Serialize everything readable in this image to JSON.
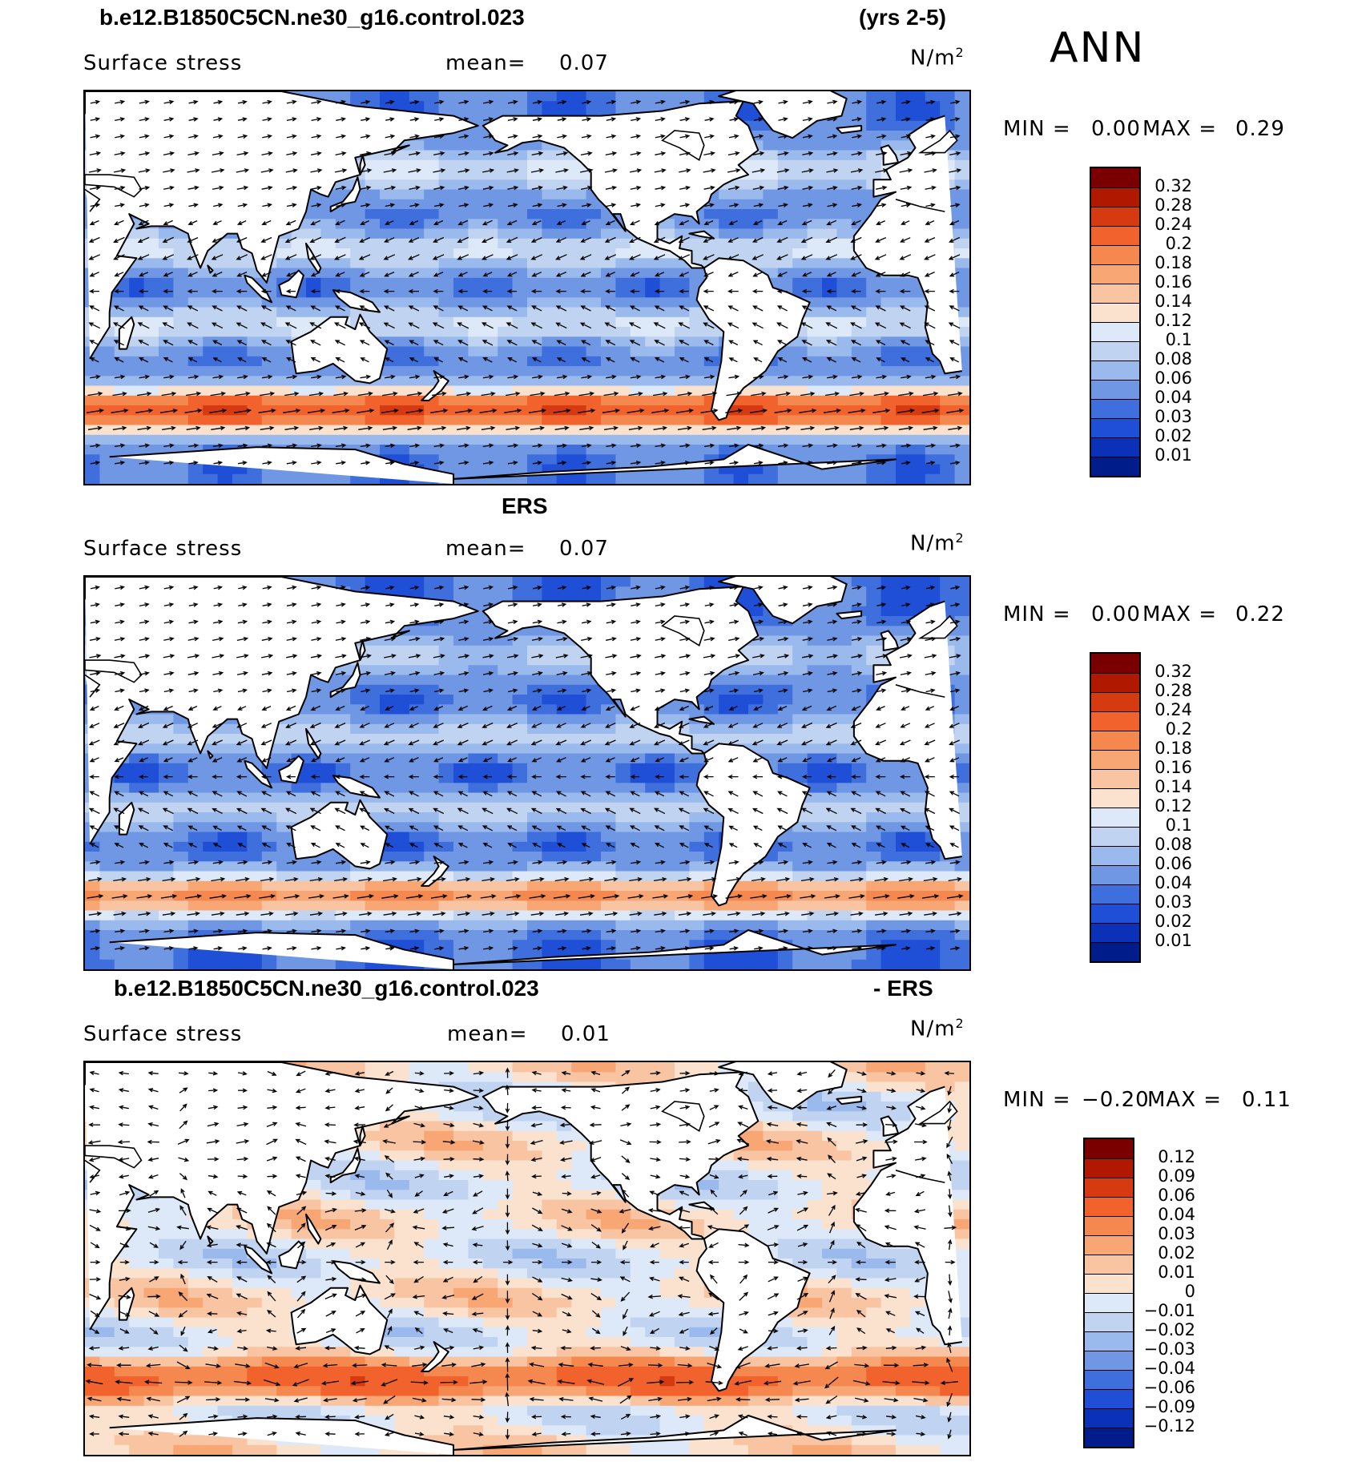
{
  "header": {
    "case_title": "b.e12.B1850C5CN.ne30_g16.control.023",
    "years": "(yrs 2-5)",
    "season": "ANN"
  },
  "panels": [
    {
      "label": "Surface stress",
      "mean_label": "mean=",
      "mean_value": "0.07",
      "units": "N/m",
      "units_sup": "2",
      "min_label": "MIN =",
      "min_value": "0.00",
      "max_label": "MAX =",
      "max_value": "0.29",
      "colorbar_labels": [
        "0.32",
        "0.28",
        "0.24",
        "0.2",
        "0.18",
        "0.16",
        "0.14",
        "0.12",
        "0.1",
        "0.08",
        "0.06",
        "0.04",
        "0.03",
        "0.02",
        "0.01"
      ],
      "colorbar_colors": [
        "#7a0000",
        "#b01800",
        "#d63a10",
        "#f2622d",
        "#f5884e",
        "#f7a674",
        "#f9c4a2",
        "#fbe2cf",
        "#dde9f8",
        "#c0d4f2",
        "#9ab9ec",
        "#6f97e4",
        "#3f6fdc",
        "#1f4fd6",
        "#0a31b8",
        "#001c8a"
      ],
      "field": "model"
    },
    {
      "title": "ERS",
      "label": "Surface stress",
      "mean_label": "mean=",
      "mean_value": "0.07",
      "units": "N/m",
      "units_sup": "2",
      "min_label": "MIN =",
      "min_value": "0.00",
      "max_label": "MAX =",
      "max_value": "0.22",
      "colorbar_labels": [
        "0.32",
        "0.28",
        "0.24",
        "0.2",
        "0.18",
        "0.16",
        "0.14",
        "0.12",
        "0.1",
        "0.08",
        "0.06",
        "0.04",
        "0.03",
        "0.02",
        "0.01"
      ],
      "colorbar_colors": [
        "#7a0000",
        "#b01800",
        "#d63a10",
        "#f2622d",
        "#f5884e",
        "#f7a674",
        "#f9c4a2",
        "#fbe2cf",
        "#dde9f8",
        "#c0d4f2",
        "#9ab9ec",
        "#6f97e4",
        "#3f6fdc",
        "#1f4fd6",
        "#0a31b8",
        "#001c8a"
      ],
      "field": "obs"
    },
    {
      "title_left": "b.e12.B1850C5CN.ne30_g16.control.023",
      "title_right": "- ERS",
      "label": "Surface stress",
      "mean_label": "mean=",
      "mean_value": "0.01",
      "units": "N/m",
      "units_sup": "2",
      "min_label": "MIN =",
      "min_value": "−0.20",
      "max_label": "MAX =",
      "max_value": "0.11",
      "colorbar_labels": [
        "0.12",
        "0.09",
        "0.06",
        "0.04",
        "0.03",
        "0.02",
        "0.01",
        "0",
        "−0.01",
        "−0.02",
        "−0.03",
        "−0.04",
        "−0.06",
        "−0.09",
        "−0.12"
      ],
      "colorbar_colors": [
        "#7a0000",
        "#b01800",
        "#d63a10",
        "#f2622d",
        "#f5884e",
        "#f7a674",
        "#f9c4a2",
        "#fbe2cf",
        "#dde9f8",
        "#c0d4f2",
        "#9ab9ec",
        "#6f97e4",
        "#3f6fdc",
        "#1f4fd6",
        "#0a31b8",
        "#001c8a"
      ],
      "field": "diff"
    }
  ]
}
